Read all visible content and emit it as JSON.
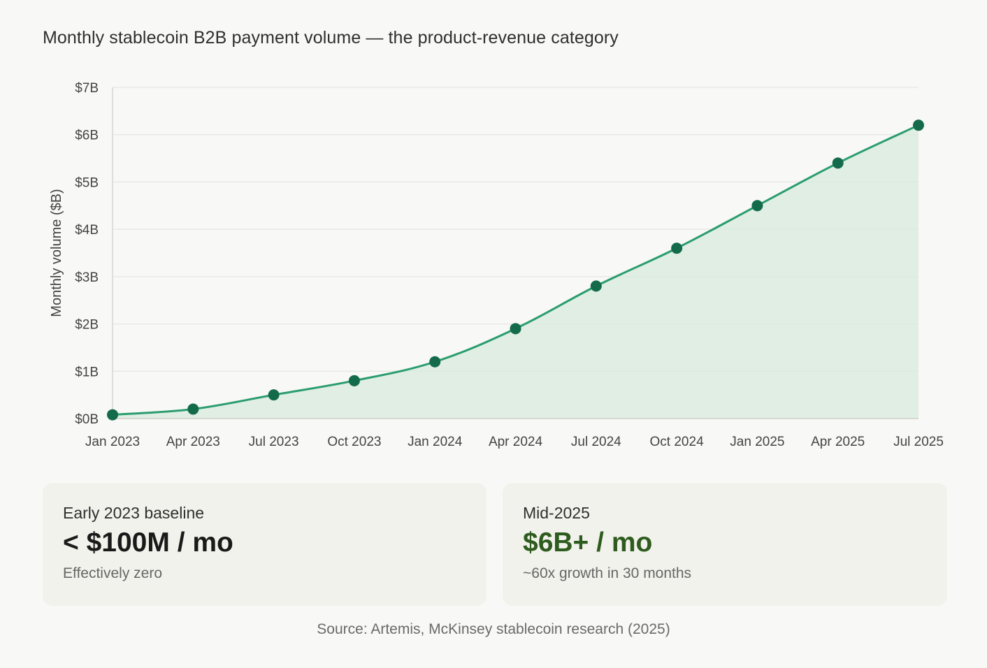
{
  "title": "Monthly stablecoin B2B payment volume — the product-revenue category",
  "colors": {
    "line": "#2a9d6e",
    "marker": "#146b4b",
    "area": "#d6eadd",
    "grid": "#e8e8e4",
    "accent_green": "#2e5c1f"
  },
  "chart_data": {
    "type": "area",
    "title": "Monthly stablecoin B2B payment volume — the product-revenue category",
    "xlabel": "",
    "ylabel": "Monthly volume ($B)",
    "x": [
      "Jan 2023",
      "Apr 2023",
      "Jul 2023",
      "Oct 2023",
      "Jan 2024",
      "Apr 2024",
      "Jul 2024",
      "Oct 2024",
      "Jan 2025",
      "Apr 2025",
      "Jul 2025"
    ],
    "series": [
      {
        "values": [
          0.08,
          0.2,
          0.5,
          0.8,
          1.2,
          1.9,
          2.8,
          3.6,
          4.5,
          5.4,
          6.2
        ]
      }
    ],
    "ylim": [
      0,
      7
    ],
    "yticks": [
      0,
      1,
      2,
      3,
      4,
      5,
      6,
      7
    ],
    "ytick_labels": [
      "$0B",
      "$1B",
      "$2B",
      "$3B",
      "$4B",
      "$5B",
      "$6B",
      "$7B"
    ],
    "grid": true,
    "legend": "none"
  },
  "cards": [
    {
      "label": "Early 2023 baseline",
      "value": "< $100M / mo",
      "sub": "Effectively zero"
    },
    {
      "label": "Mid-2025",
      "value": "$6B+ / mo",
      "sub": "~60x growth in 30 months"
    }
  ],
  "source": "Source: Artemis, McKinsey stablecoin research (2025)"
}
